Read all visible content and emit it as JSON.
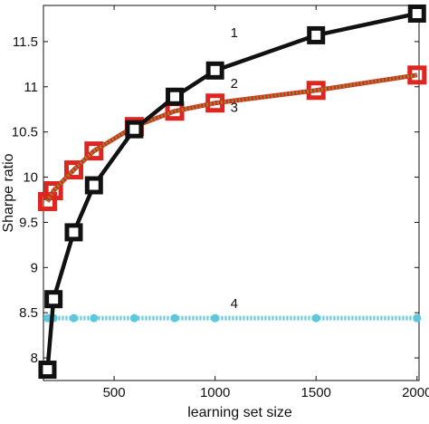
{
  "chart_data": {
    "type": "line",
    "title": "",
    "xlabel": "learning set size",
    "ylabel": "Sharpe ratio",
    "xlim": [
      150,
      2010
    ],
    "ylim": [
      7.75,
      11.9
    ],
    "grid": false,
    "legend": "none",
    "xticks": [
      500,
      1000,
      1500,
      2000
    ],
    "yticks": [
      8,
      8.5,
      9,
      9.5,
      10,
      10.5,
      11,
      11.5
    ],
    "series": [
      {
        "name": "1",
        "color": "#111111",
        "marker": "square",
        "x": [
          170,
          200,
          300,
          400,
          600,
          800,
          1000,
          1500,
          2000
        ],
        "y": [
          7.87,
          8.65,
          9.39,
          9.91,
          10.53,
          10.89,
          11.18,
          11.57,
          11.81
        ]
      },
      {
        "name": "2",
        "color": "#e0241f",
        "marker": "square",
        "x": [
          170,
          200,
          300,
          400,
          600,
          800,
          1000,
          1500,
          2000
        ],
        "y": [
          9.73,
          9.85,
          10.08,
          10.29,
          10.56,
          10.73,
          10.82,
          10.96,
          11.13
        ]
      },
      {
        "name": "3",
        "color": "#8a8a2a",
        "marker": "none",
        "x": [
          170,
          200,
          300,
          400,
          600,
          800,
          1000,
          1500,
          2000
        ],
        "y": [
          9.73,
          9.85,
          10.08,
          10.29,
          10.56,
          10.73,
          10.82,
          10.96,
          11.13
        ]
      },
      {
        "name": "4",
        "color": "#5bc8dc",
        "marker": "circle",
        "x": [
          170,
          200,
          300,
          400,
          600,
          800,
          1000,
          1500,
          2000
        ],
        "y": [
          8.44,
          8.44,
          8.44,
          8.44,
          8.44,
          8.44,
          8.44,
          8.44,
          8.44
        ]
      }
    ],
    "annotations": [
      {
        "text": "1",
        "x": 1095,
        "y": 11.55
      },
      {
        "text": "2",
        "x": 1095,
        "y": 10.99
      },
      {
        "text": "3",
        "x": 1095,
        "y": 10.72
      },
      {
        "text": "4",
        "x": 1095,
        "y": 8.55
      }
    ]
  }
}
